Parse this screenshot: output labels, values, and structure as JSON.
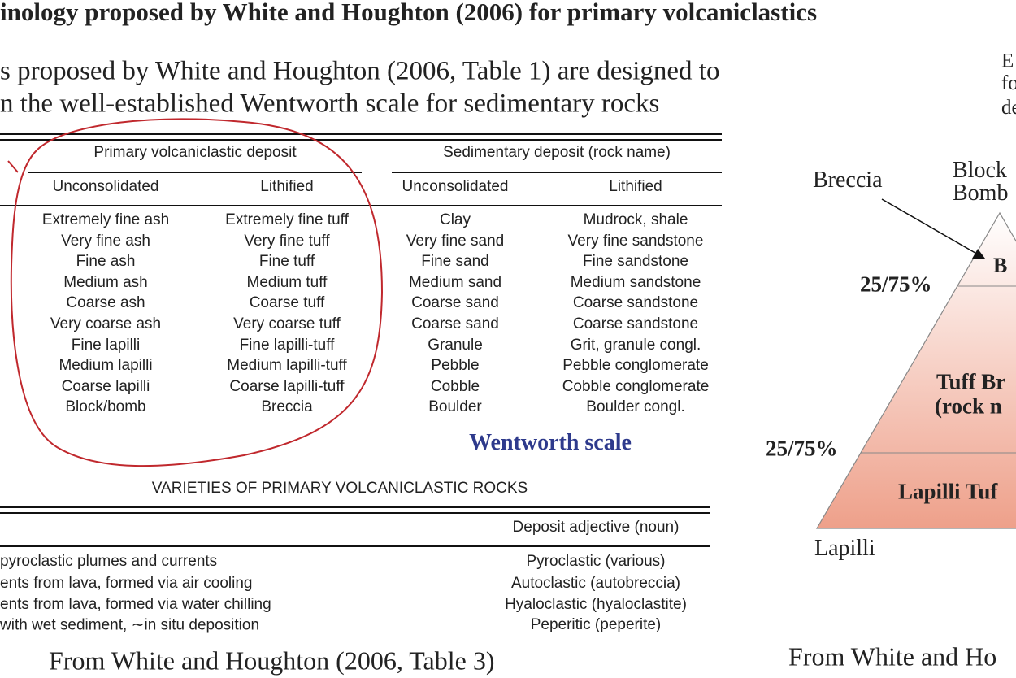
{
  "title": "inology proposed by White and Houghton (2006) for primary volcaniclastics",
  "intro": [
    "s proposed by White and Houghton (2006, Table 1) are designed to",
    "n the well-established Wentworth scale for sedimentary rocks"
  ],
  "table1": {
    "group_headers": [
      "Primary volcaniclastic deposit",
      "Sedimentary deposit (rock name)"
    ],
    "subheaders": [
      "Unconsolidated",
      "Lithified",
      "Unconsolidated",
      "Lithified"
    ],
    "rows": [
      [
        "Extremely fine ash",
        "Extremely fine tuff",
        "Clay",
        "Mudrock, shale"
      ],
      [
        "Very fine ash",
        "Very fine tuff",
        "Very fine sand",
        "Very fine sandstone"
      ],
      [
        "Fine ash",
        "Fine tuff",
        "Fine sand",
        "Fine sandstone"
      ],
      [
        "Medium ash",
        "Medium tuff",
        "Medium sand",
        "Medium sandstone"
      ],
      [
        "Coarse ash",
        "Coarse tuff",
        "Coarse sand",
        "Coarse sandstone"
      ],
      [
        "Very coarse ash",
        "Very coarse tuff",
        "Coarse sand",
        "Coarse sandstone"
      ],
      [
        "Fine lapilli",
        "Fine lapilli-tuff",
        "Granule",
        "Grit, granule congl."
      ],
      [
        "Medium lapilli",
        "Medium lapilli-tuff",
        "Pebble",
        "Pebble conglomerate"
      ],
      [
        "Coarse lapilli",
        "Coarse lapilli-tuff",
        "Cobble",
        "Cobble conglomerate"
      ],
      [
        "Block/bomb",
        "Breccia",
        "Boulder",
        "Boulder congl."
      ]
    ],
    "label": "Wentworth scale"
  },
  "table2": {
    "title": "VARIETIES OF PRIMARY VOLCANICLASTIC ROCKS",
    "header": "Deposit adjective (noun)",
    "rows": [
      [
        "pyroclastic plumes and currents",
        "Pyroclastic (various)"
      ],
      [
        "ents from lava, formed via air cooling",
        "Autoclastic (autobreccia)"
      ],
      [
        "ents from lava, formed via water chilling",
        "Hyaloclastic (hyaloclastite)"
      ],
      [
        "with wet sediment, ∼in situ deposition",
        "Peperitic (peperite)"
      ]
    ]
  },
  "caption_left": "From White and Houghton (2006, Table 3)",
  "diagram": {
    "header_lines": [
      "E",
      "fo",
      "de"
    ],
    "breccia": "Breccia",
    "block_bomb": [
      "Block",
      "Bomb"
    ],
    "apex_label": "B",
    "upper_boundary": "25/75%",
    "middle_label": [
      "Tuff Br",
      "(rock n"
    ],
    "lower_boundary": "25/75%",
    "bottom_label": "Lapilli Tuf",
    "corner_label": "Lapilli",
    "caption": "From White and Ho"
  }
}
